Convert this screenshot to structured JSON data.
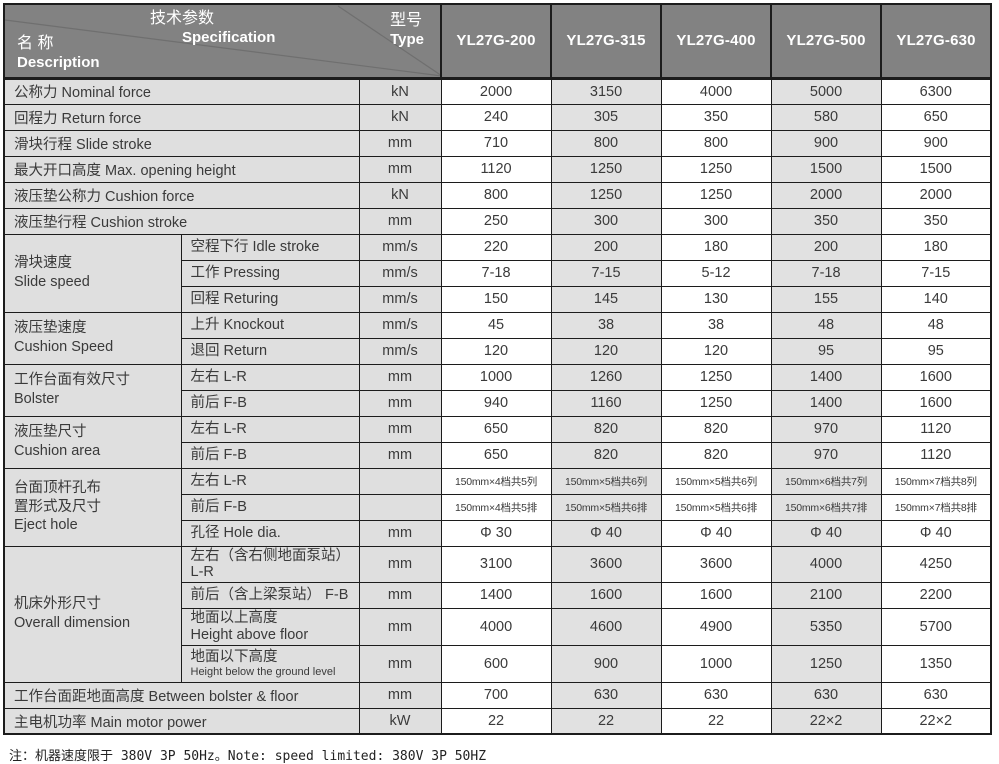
{
  "colors": {
    "header_bg": "#828282",
    "header_text": "#ffffff",
    "cell_light": "#dfdfdf",
    "stripe": "#e1e1e1",
    "border": "#1c1c1c",
    "text": "#3a3a3a",
    "diag_line": "#6f6f6f"
  },
  "header": {
    "spec_zh": "技术参数",
    "spec_en": "Specification",
    "name_zh": "名 称",
    "name_en": "Description",
    "type_zh": "型号",
    "type_en": "Type",
    "models": [
      "YL27G-200",
      "YL27G-315",
      "YL27G-400",
      "YL27G-500",
      "YL27G-630"
    ]
  },
  "rows": [
    {
      "label": "公称力  Nominal force",
      "unit": "kN",
      "values": [
        "2000",
        "3150",
        "4000",
        "5000",
        "6300"
      ]
    },
    {
      "label": "回程力  Return force",
      "unit": "kN",
      "values": [
        "240",
        "305",
        "350",
        "580",
        "650"
      ]
    },
    {
      "label": "滑块行程  Slide stroke",
      "unit": "mm",
      "values": [
        "710",
        "800",
        "800",
        "900",
        "900"
      ]
    },
    {
      "label": "最大开口高度  Max. opening height",
      "unit": "mm",
      "values": [
        "1120",
        "1250",
        "1250",
        "1500",
        "1500"
      ]
    },
    {
      "label": "液压垫公称力  Cushion force",
      "unit": "kN",
      "values": [
        "800",
        "1250",
        "1250",
        "2000",
        "2000"
      ]
    },
    {
      "label": "液压垫行程  Cushion stroke",
      "unit": "mm",
      "values": [
        "250",
        "300",
        "300",
        "350",
        "350"
      ]
    },
    {
      "sub": true,
      "group": {
        "label": "滑块速度\nSlide speed",
        "rowspan": 3
      },
      "label": "空程下行 Idle stroke",
      "unit": "mm/s",
      "values": [
        "220",
        "200",
        "180",
        "200",
        "180"
      ]
    },
    {
      "sub": true,
      "label": "工作 Pressing",
      "unit": "mm/s",
      "values": [
        "7-18",
        "7-15",
        "5-12",
        "7-18",
        "7-15"
      ]
    },
    {
      "sub": true,
      "label": "回程 Returing",
      "unit": "mm/s",
      "values": [
        "150",
        "145",
        "130",
        "155",
        "140"
      ]
    },
    {
      "sub": true,
      "group": {
        "label": "液压垫速度\nCushion Speed",
        "rowspan": 2
      },
      "label": "上升 Knockout",
      "unit": "mm/s",
      "values": [
        "45",
        "38",
        "38",
        "48",
        "48"
      ]
    },
    {
      "sub": true,
      "label": "退回 Return",
      "unit": "mm/s",
      "values": [
        "120",
        "120",
        "120",
        "95",
        "95"
      ]
    },
    {
      "sub": true,
      "group": {
        "label": "工作台面有效尺寸\nBolster",
        "rowspan": 2
      },
      "label": "左右 L-R",
      "unit": "mm",
      "values": [
        "1000",
        "1260",
        "1250",
        "1400",
        "1600"
      ]
    },
    {
      "sub": true,
      "label": "前后 F-B",
      "unit": "mm",
      "values": [
        "940",
        "1160",
        "1250",
        "1400",
        "1600"
      ]
    },
    {
      "sub": true,
      "group": {
        "label": "液压垫尺寸\nCushion area",
        "rowspan": 2
      },
      "label": "左右 L-R",
      "unit": "mm",
      "values": [
        "650",
        "820",
        "820",
        "970",
        "1120"
      ]
    },
    {
      "sub": true,
      "label": "前后 F-B",
      "unit": "mm",
      "values": [
        "650",
        "820",
        "820",
        "970",
        "1120"
      ]
    },
    {
      "sub": true,
      "group": {
        "label": "台面顶杆孔布\n置形式及尺寸\nEject hole",
        "rowspan": 3
      },
      "label": "左右 L-R",
      "unit": "",
      "values": [
        "150mm×4档共5列",
        "150mm×5档共6列",
        "150mm×5档共6列",
        "150mm×6档共7列",
        "150mm×7档共8列"
      ],
      "values_small": true
    },
    {
      "sub": true,
      "label": "前后 F-B",
      "unit": "",
      "values": [
        "150mm×4档共5排",
        "150mm×5档共6排",
        "150mm×5档共6排",
        "150mm×6档共7排",
        "150mm×7档共8排"
      ],
      "values_small": true
    },
    {
      "sub": true,
      "label": "孔径 Hole dia.",
      "unit": "mm",
      "values": [
        "Φ 30",
        "Φ 40",
        "Φ 40",
        "Φ 40",
        "Φ 40"
      ]
    },
    {
      "sub": true,
      "group": {
        "label": "机床外形尺寸\nOverall dimension",
        "rowspan": 4
      },
      "label": "左右（含右侧地面泵站） L-R",
      "unit": "mm",
      "values": [
        "3100",
        "3600",
        "3600",
        "4000",
        "4250"
      ]
    },
    {
      "sub": true,
      "label": "前后（含上梁泵站） F-B",
      "unit": "mm",
      "values": [
        "1400",
        "1600",
        "1600",
        "2100",
        "2200"
      ]
    },
    {
      "sub": true,
      "tall": true,
      "label": "地面以上高度\nHeight above floor",
      "unit": "mm",
      "values": [
        "4000",
        "4600",
        "4900",
        "5350",
        "5700"
      ]
    },
    {
      "sub": true,
      "tall": true,
      "label2_small": true,
      "label": "地面以下高度\nHeight below the ground level",
      "unit": "mm",
      "values": [
        "600",
        "900",
        "1000",
        "1250",
        "1350"
      ]
    },
    {
      "label": "工作台面距地面高度 Between bolster & floor",
      "unit": "mm",
      "values": [
        "700",
        "630",
        "630",
        "630",
        "630"
      ]
    },
    {
      "label": "主电机功率 Main motor power",
      "unit": "kW",
      "values": [
        "22",
        "22",
        "22",
        "22×2",
        "22×2"
      ]
    }
  ],
  "note": "注：机器速度限于 380V 3P 50Hz。Note: speed limited: 380V 3P 50HZ"
}
